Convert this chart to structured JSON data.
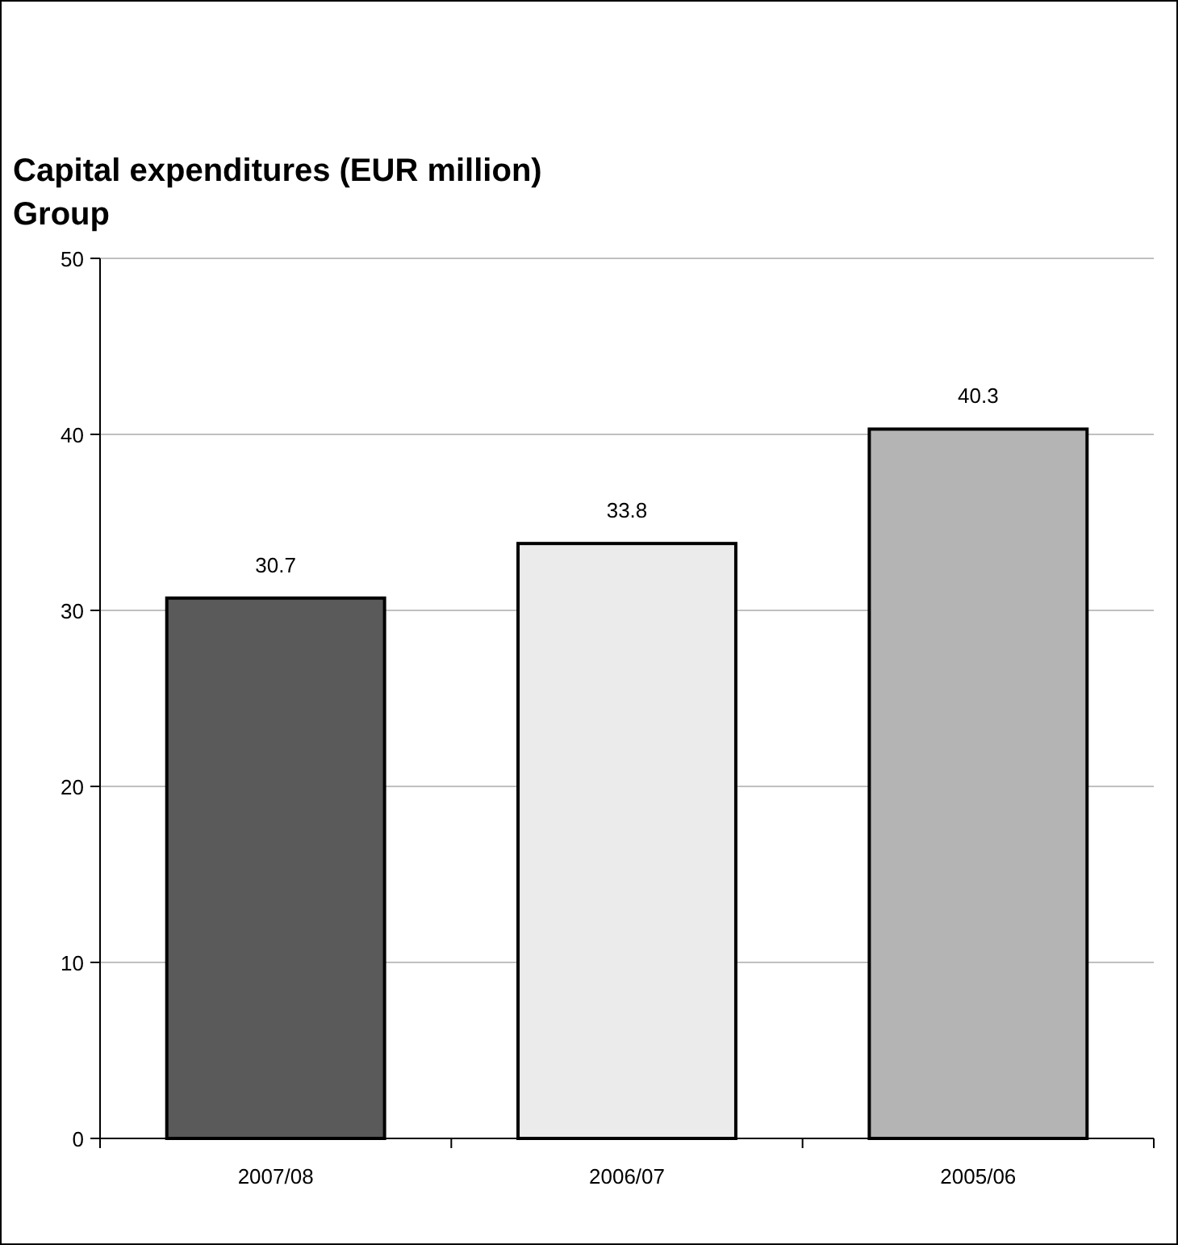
{
  "chart_data": {
    "type": "bar",
    "title": "Capital expenditures (EUR million)",
    "subtitle": "Group",
    "categories": [
      "2007/08",
      "2006/07",
      "2005/06"
    ],
    "values": [
      30.7,
      33.8,
      40.3
    ],
    "colors": [
      "#5a5a5a",
      "#ebebeb",
      "#b4b4b4"
    ],
    "ylim": [
      0,
      50
    ],
    "yticks": [
      0,
      10,
      20,
      30,
      40,
      50
    ],
    "grid": "y",
    "data_labels": true
  }
}
